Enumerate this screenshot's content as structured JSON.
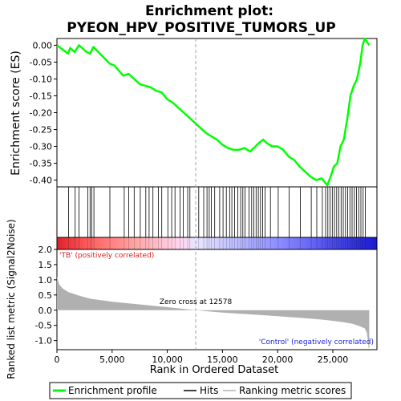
{
  "chart_data": {
    "type": "line",
    "title_line1": "Enrichment plot:",
    "title_line2": "PYEON_HPV_POSITIVE_TUMORS_UP",
    "es_ylabel": "Enrichment score (ES)",
    "metric_ylabel": "Ranked list metric (Signal2Noise)",
    "xlabel": "Rank in Ordered Dataset",
    "xlim": [
      0,
      29000
    ],
    "x_ticks": [
      0,
      5000,
      10000,
      15000,
      20000,
      25000
    ],
    "x_tick_labels": [
      "0",
      "5,000",
      "10,000",
      "15,000",
      "20,000",
      "25,000"
    ],
    "es_ylim": [
      -0.42,
      0.02
    ],
    "es_y_ticks": [
      0.0,
      -0.05,
      -0.1,
      -0.15,
      -0.2,
      -0.25,
      -0.3,
      -0.35,
      -0.4
    ],
    "es_y_tick_labels": [
      "0.00",
      "-0.05",
      "-0.10",
      "-0.15",
      "-0.20",
      "-0.25",
      "-0.30",
      "-0.35",
      "-0.40"
    ],
    "metric_ylim": [
      -1.3,
      2.0
    ],
    "metric_y_ticks": [
      2.0,
      1.5,
      1.0,
      0.5,
      0.0,
      -0.5,
      -1.0
    ],
    "metric_y_tick_labels": [
      "2.0",
      "1.5",
      "1.0",
      "0.5",
      "0.0",
      "-0.5",
      "-1.0"
    ],
    "zero_cross_rank": 12578,
    "zero_cross_label": "Zero cross at 12578",
    "positive_label": "'TB' (positively correlated)",
    "negative_label": "'Control' (negatively correlated)",
    "series": [
      {
        "name": "Enrichment profile",
        "color": "#00ff00",
        "x": [
          0,
          1000,
          1200,
          1600,
          2000,
          2700,
          3000,
          3300,
          4800,
          5200,
          6000,
          6500,
          7000,
          7500,
          8000,
          8500,
          9000,
          9500,
          10000,
          10500,
          11000,
          11500,
          12000,
          12500,
          13000,
          13500,
          14000,
          14500,
          15000,
          15500,
          16000,
          16500,
          17000,
          17500,
          18000,
          18300,
          18700,
          19000,
          19500,
          20000,
          20500,
          21000,
          21500,
          22000,
          22500,
          23000,
          23500,
          24000,
          24500,
          24800,
          25100,
          25400,
          25700,
          26000,
          26300,
          26600,
          26900,
          27200,
          27500,
          27700,
          27900,
          28300
        ],
        "y": [
          0.0,
          -0.025,
          -0.008,
          -0.02,
          0.0,
          -0.02,
          -0.025,
          -0.005,
          -0.055,
          -0.06,
          -0.09,
          -0.085,
          -0.1,
          -0.115,
          -0.12,
          -0.125,
          -0.135,
          -0.14,
          -0.16,
          -0.17,
          -0.185,
          -0.2,
          -0.215,
          -0.23,
          -0.245,
          -0.26,
          -0.27,
          -0.28,
          -0.295,
          -0.305,
          -0.31,
          -0.31,
          -0.305,
          -0.315,
          -0.3,
          -0.29,
          -0.28,
          -0.29,
          -0.3,
          -0.3,
          -0.31,
          -0.33,
          -0.34,
          -0.36,
          -0.375,
          -0.39,
          -0.4,
          -0.395,
          -0.415,
          -0.39,
          -0.36,
          -0.35,
          -0.3,
          -0.28,
          -0.22,
          -0.15,
          -0.12,
          -0.1,
          -0.05,
          0.0,
          0.02,
          0.0
        ]
      },
      {
        "name": "Hits",
        "color": "#000000",
        "x": [
          1050,
          1650,
          2000,
          2800,
          3000,
          3150,
          3350,
          4800,
          6100,
          6500,
          7000,
          7550,
          8050,
          8350,
          8700,
          9200,
          9500,
          10050,
          10400,
          10700,
          11150,
          11450,
          11850,
          12050,
          12850,
          13300,
          13600,
          13800,
          14000,
          14300,
          14750,
          15050,
          15350,
          15650,
          15850,
          16100,
          16400,
          16650,
          16850,
          17050,
          17400,
          17650,
          17850,
          18050,
          18250,
          18450,
          18650,
          18850,
          19350,
          20050,
          21050,
          22050,
          23050,
          23550,
          24050,
          24350,
          24550,
          24750,
          24950,
          25150,
          25350,
          25550,
          25750,
          25950,
          26150,
          26350,
          26550,
          26750,
          26950,
          27150,
          27350,
          27550,
          27750,
          27950
        ]
      }
    ],
    "metric": {
      "name": "Ranking metric scores",
      "color": "#b0b0b0",
      "rank": [
        0,
        200,
        500,
        1000,
        2000,
        3000,
        5000,
        8000,
        10000,
        12578,
        15000,
        18000,
        20000,
        22000,
        24000,
        25000,
        26000,
        26800,
        27400,
        27900,
        28100,
        28250,
        28300
      ],
      "value": [
        1.1,
        0.85,
        0.72,
        0.6,
        0.48,
        0.38,
        0.28,
        0.17,
        0.1,
        0.0,
        -0.08,
        -0.15,
        -0.2,
        -0.25,
        -0.31,
        -0.35,
        -0.4,
        -0.45,
        -0.52,
        -0.6,
        -0.75,
        -1.25,
        -1.25
      ]
    },
    "legend": {
      "placement": "bottom",
      "items": [
        {
          "label": "Enrichment profile",
          "color": "#00ff00"
        },
        {
          "label": "Hits",
          "color": "#000000"
        },
        {
          "label": "Ranking metric scores",
          "color": "#b0b0b0"
        }
      ]
    },
    "grid": false
  }
}
